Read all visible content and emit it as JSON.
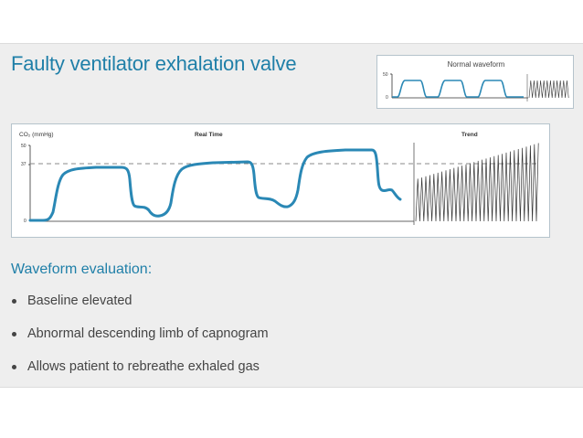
{
  "slide": {
    "title": "Faulty ventilator exhalation valve",
    "section_heading": "Waveform evaluation:",
    "bullets": [
      "Baseline elevated",
      "Abnormal descending limb of capnogram",
      "Allows patient to rebreathe exhaled gas"
    ]
  },
  "inset": {
    "label": "Normal waveform",
    "y_tick_top": "50",
    "y_tick_bottom": "0"
  },
  "chart": {
    "y_axis_label": "CO₂ (mmHg)",
    "realtime_label": "Real Time",
    "trend_label": "Trend",
    "y_tick_top": "50",
    "y_tick_mid": "37",
    "y_tick_bottom": "0"
  },
  "colors": {
    "accent": "#1f7fa8",
    "waveform": "#2a88b5",
    "trend": "#333333",
    "background": "#eeeeee"
  }
}
